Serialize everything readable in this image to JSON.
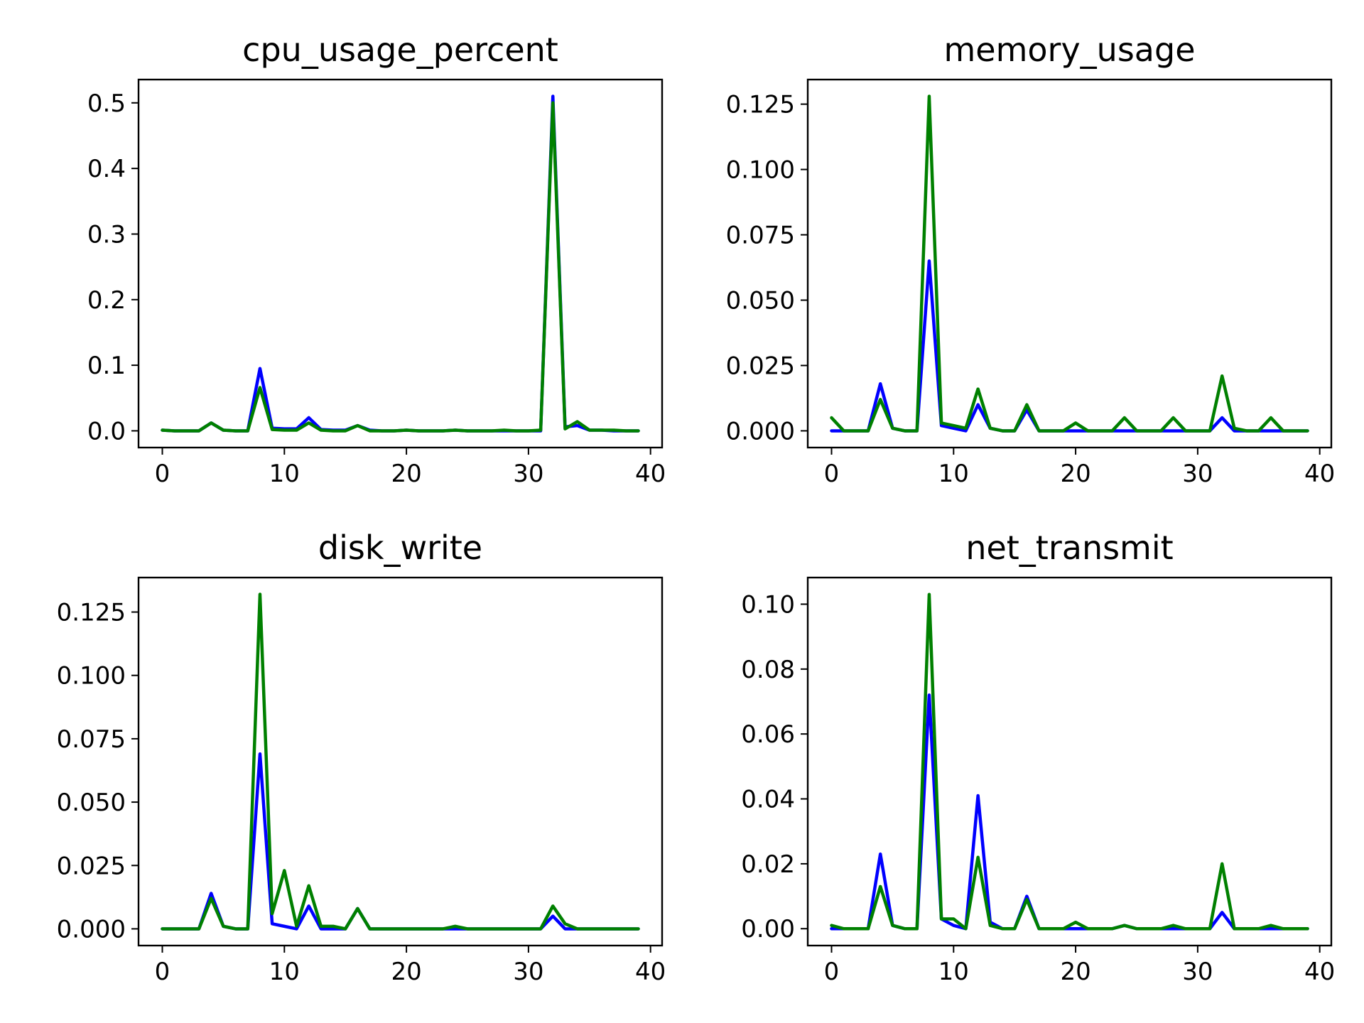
{
  "chart_data": [
    {
      "type": "line",
      "title": "cpu_usage_percent",
      "xlim": [
        -1.95,
        40.95
      ],
      "ylim": [
        -0.0255,
        0.5355
      ],
      "xticks": [
        0,
        10,
        20,
        30,
        40
      ],
      "xtick_labels": [
        "0",
        "10",
        "20",
        "30",
        "40"
      ],
      "yticks": [
        0.0,
        0.1,
        0.2,
        0.3,
        0.4,
        0.5
      ],
      "ytick_labels": [
        "0.0",
        "0.1",
        "0.2",
        "0.3",
        "0.4",
        "0.5"
      ],
      "x": [
        0,
        1,
        2,
        3,
        4,
        5,
        6,
        7,
        8,
        9,
        10,
        11,
        12,
        13,
        14,
        15,
        16,
        17,
        18,
        19,
        20,
        21,
        22,
        23,
        24,
        25,
        26,
        27,
        28,
        29,
        30,
        31,
        32,
        33,
        34,
        35,
        36,
        37,
        38,
        39
      ],
      "series": [
        {
          "color": "#0000ff",
          "values": [
            0.001,
            0.0,
            0.0,
            0.0,
            0.012,
            0.001,
            0.0,
            0.0,
            0.095,
            0.004,
            0.003,
            0.003,
            0.02,
            0.002,
            0.001,
            0.001,
            0.008,
            0.001,
            0.0,
            0.0,
            0.001,
            0.0,
            0.0,
            0.0,
            0.001,
            0.0,
            0.0,
            0.0,
            0.0,
            0.0,
            0.0,
            0.0,
            0.51,
            0.006,
            0.008,
            0.001,
            0.001,
            0.0,
            0.0,
            0.0
          ]
        },
        {
          "color": "#008000",
          "values": [
            0.001,
            0.0,
            0.0,
            0.0,
            0.012,
            0.001,
            0.0,
            0.0,
            0.066,
            0.002,
            0.001,
            0.001,
            0.012,
            0.001,
            0.0,
            0.0,
            0.008,
            0.0,
            0.0,
            0.0,
            0.001,
            0.0,
            0.0,
            0.0,
            0.001,
            0.0,
            0.0,
            0.0,
            0.001,
            0.0,
            0.0,
            0.001,
            0.5,
            0.003,
            0.014,
            0.001,
            0.001,
            0.001,
            0.0,
            0.0
          ]
        }
      ]
    },
    {
      "type": "line",
      "title": "memory_usage",
      "xlim": [
        -1.95,
        40.95
      ],
      "ylim": [
        -0.0064,
        0.1344
      ],
      "xticks": [
        0,
        10,
        20,
        30,
        40
      ],
      "xtick_labels": [
        "0",
        "10",
        "20",
        "30",
        "40"
      ],
      "yticks": [
        0.0,
        0.025,
        0.05,
        0.075,
        0.1,
        0.125
      ],
      "ytick_labels": [
        "0.000",
        "0.025",
        "0.050",
        "0.075",
        "0.100",
        "0.125"
      ],
      "x": [
        0,
        1,
        2,
        3,
        4,
        5,
        6,
        7,
        8,
        9,
        10,
        11,
        12,
        13,
        14,
        15,
        16,
        17,
        18,
        19,
        20,
        21,
        22,
        23,
        24,
        25,
        26,
        27,
        28,
        29,
        30,
        31,
        32,
        33,
        34,
        35,
        36,
        37,
        38,
        39
      ],
      "series": [
        {
          "color": "#0000ff",
          "values": [
            0.0,
            0.0,
            0.0,
            0.0,
            0.018,
            0.001,
            0.0,
            0.0,
            0.065,
            0.002,
            0.001,
            0.0,
            0.01,
            0.001,
            0.0,
            0.0,
            0.008,
            0.0,
            0.0,
            0.0,
            0.0,
            0.0,
            0.0,
            0.0,
            0.0,
            0.0,
            0.0,
            0.0,
            0.0,
            0.0,
            0.0,
            0.0,
            0.005,
            0.0,
            0.0,
            0.0,
            0.0,
            0.0,
            0.0,
            0.0
          ]
        },
        {
          "color": "#008000",
          "values": [
            0.005,
            0.0,
            0.0,
            0.0,
            0.012,
            0.001,
            0.0,
            0.0,
            0.128,
            0.003,
            0.002,
            0.001,
            0.016,
            0.001,
            0.0,
            0.0,
            0.01,
            0.0,
            0.0,
            0.0,
            0.003,
            0.0,
            0.0,
            0.0,
            0.005,
            0.0,
            0.0,
            0.0,
            0.005,
            0.0,
            0.0,
            0.0,
            0.021,
            0.001,
            0.0,
            0.0,
            0.005,
            0.0,
            0.0,
            0.0
          ]
        }
      ]
    },
    {
      "type": "line",
      "title": "disk_write",
      "xlim": [
        -1.95,
        40.95
      ],
      "ylim": [
        -0.0066,
        0.1386
      ],
      "xticks": [
        0,
        10,
        20,
        30,
        40
      ],
      "xtick_labels": [
        "0",
        "10",
        "20",
        "30",
        "40"
      ],
      "yticks": [
        0.0,
        0.025,
        0.05,
        0.075,
        0.1,
        0.125
      ],
      "ytick_labels": [
        "0.000",
        "0.025",
        "0.050",
        "0.075",
        "0.100",
        "0.125"
      ],
      "x": [
        0,
        1,
        2,
        3,
        4,
        5,
        6,
        7,
        8,
        9,
        10,
        11,
        12,
        13,
        14,
        15,
        16,
        17,
        18,
        19,
        20,
        21,
        22,
        23,
        24,
        25,
        26,
        27,
        28,
        29,
        30,
        31,
        32,
        33,
        34,
        35,
        36,
        37,
        38,
        39
      ],
      "series": [
        {
          "color": "#0000ff",
          "values": [
            0.0,
            0.0,
            0.0,
            0.0,
            0.014,
            0.001,
            0.0,
            0.0,
            0.069,
            0.002,
            0.001,
            0.0,
            0.009,
            0.0,
            0.0,
            0.0,
            0.008,
            0.0,
            0.0,
            0.0,
            0.0,
            0.0,
            0.0,
            0.0,
            0.0,
            0.0,
            0.0,
            0.0,
            0.0,
            0.0,
            0.0,
            0.0,
            0.005,
            0.0,
            0.0,
            0.0,
            0.0,
            0.0,
            0.0,
            0.0
          ]
        },
        {
          "color": "#008000",
          "values": [
            0.0,
            0.0,
            0.0,
            0.0,
            0.012,
            0.001,
            0.0,
            0.0,
            0.132,
            0.006,
            0.023,
            0.001,
            0.017,
            0.001,
            0.001,
            0.0,
            0.008,
            0.0,
            0.0,
            0.0,
            0.0,
            0.0,
            0.0,
            0.0,
            0.001,
            0.0,
            0.0,
            0.0,
            0.0,
            0.0,
            0.0,
            0.0,
            0.009,
            0.002,
            0.0,
            0.0,
            0.0,
            0.0,
            0.0,
            0.0
          ]
        }
      ]
    },
    {
      "type": "line",
      "title": "net_transmit",
      "xlim": [
        -1.95,
        40.95
      ],
      "ylim": [
        -0.0052,
        0.1082
      ],
      "xticks": [
        0,
        10,
        20,
        30,
        40
      ],
      "xtick_labels": [
        "0",
        "10",
        "20",
        "30",
        "40"
      ],
      "yticks": [
        0.0,
        0.02,
        0.04,
        0.06,
        0.08,
        0.1
      ],
      "ytick_labels": [
        "0.00",
        "0.02",
        "0.04",
        "0.06",
        "0.08",
        "0.10"
      ],
      "x": [
        0,
        1,
        2,
        3,
        4,
        5,
        6,
        7,
        8,
        9,
        10,
        11,
        12,
        13,
        14,
        15,
        16,
        17,
        18,
        19,
        20,
        21,
        22,
        23,
        24,
        25,
        26,
        27,
        28,
        29,
        30,
        31,
        32,
        33,
        34,
        35,
        36,
        37,
        38,
        39
      ],
      "series": [
        {
          "color": "#0000ff",
          "values": [
            0.0,
            0.0,
            0.0,
            0.0,
            0.023,
            0.001,
            0.0,
            0.0,
            0.072,
            0.003,
            0.001,
            0.0,
            0.041,
            0.002,
            0.0,
            0.0,
            0.01,
            0.0,
            0.0,
            0.0,
            0.0,
            0.0,
            0.0,
            0.0,
            0.001,
            0.0,
            0.0,
            0.0,
            0.0,
            0.0,
            0.0,
            0.0,
            0.005,
            0.0,
            0.0,
            0.0,
            0.0,
            0.0,
            0.0,
            0.0
          ]
        },
        {
          "color": "#008000",
          "values": [
            0.001,
            0.0,
            0.0,
            0.0,
            0.013,
            0.001,
            0.0,
            0.0,
            0.103,
            0.003,
            0.003,
            0.0,
            0.022,
            0.001,
            0.0,
            0.0,
            0.009,
            0.0,
            0.0,
            0.0,
            0.002,
            0.0,
            0.0,
            0.0,
            0.001,
            0.0,
            0.0,
            0.0,
            0.001,
            0.0,
            0.0,
            0.0,
            0.02,
            0.0,
            0.0,
            0.0,
            0.001,
            0.0,
            0.0,
            0.0
          ]
        }
      ]
    }
  ]
}
